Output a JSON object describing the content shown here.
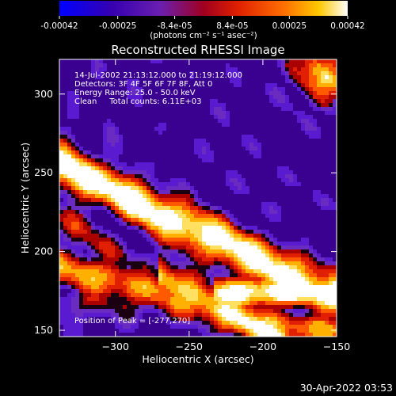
{
  "colorbar": {
    "ticks": [
      "-0.00042",
      "-0.00025",
      "-8.4e-05",
      "8.4e-05",
      "0.00025",
      "0.00042"
    ],
    "tick_values": [
      -0.00042,
      -0.00025,
      -8.4e-05,
      8.4e-05,
      0.00025,
      0.00042
    ],
    "range": [
      -0.00042,
      0.00042
    ],
    "unit_label": "(photons cm⁻² s⁻¹ asec⁻²)"
  },
  "chart_data": {
    "type": "heatmap",
    "title": "Reconstructed RHESSI Image",
    "xlabel": "Heliocentric X (arcsec)",
    "ylabel": "Heliocentric Y (arcsec)",
    "xlim": [
      -338,
      -150
    ],
    "ylim": [
      146,
      322
    ],
    "xticks": [
      -300,
      -250,
      -200,
      -150
    ],
    "xtick_labels": [
      "−300",
      "−250",
      "−200",
      "−150"
    ],
    "yticks": [
      150,
      200,
      250,
      300
    ],
    "ytick_labels": [
      "150",
      "200",
      "250",
      "300"
    ],
    "peak_position": [
      -277,
      270
    ],
    "annotations": [
      "14-Jul-2002 21:13:12.000 to 21:19:12.000",
      "Detectors: 3F 4F 5F 6F 7F 8F, Att 0",
      "Energy Range: 25.0 - 50.0 keV",
      "Clean     Total counts: 6.11E+03"
    ],
    "peak_label": "Position of Peak = [-277,270]",
    "colormap": [
      "#0000ff",
      "#3a0090",
      "#5a1bd0",
      "#6a2bc0",
      "#aa0000",
      "#e02000",
      "#ff5a00",
      "#ffb000",
      "#ffe060",
      "#ffffff"
    ]
  },
  "footer": {
    "timestamp": "30-Apr-2022 03:53"
  }
}
